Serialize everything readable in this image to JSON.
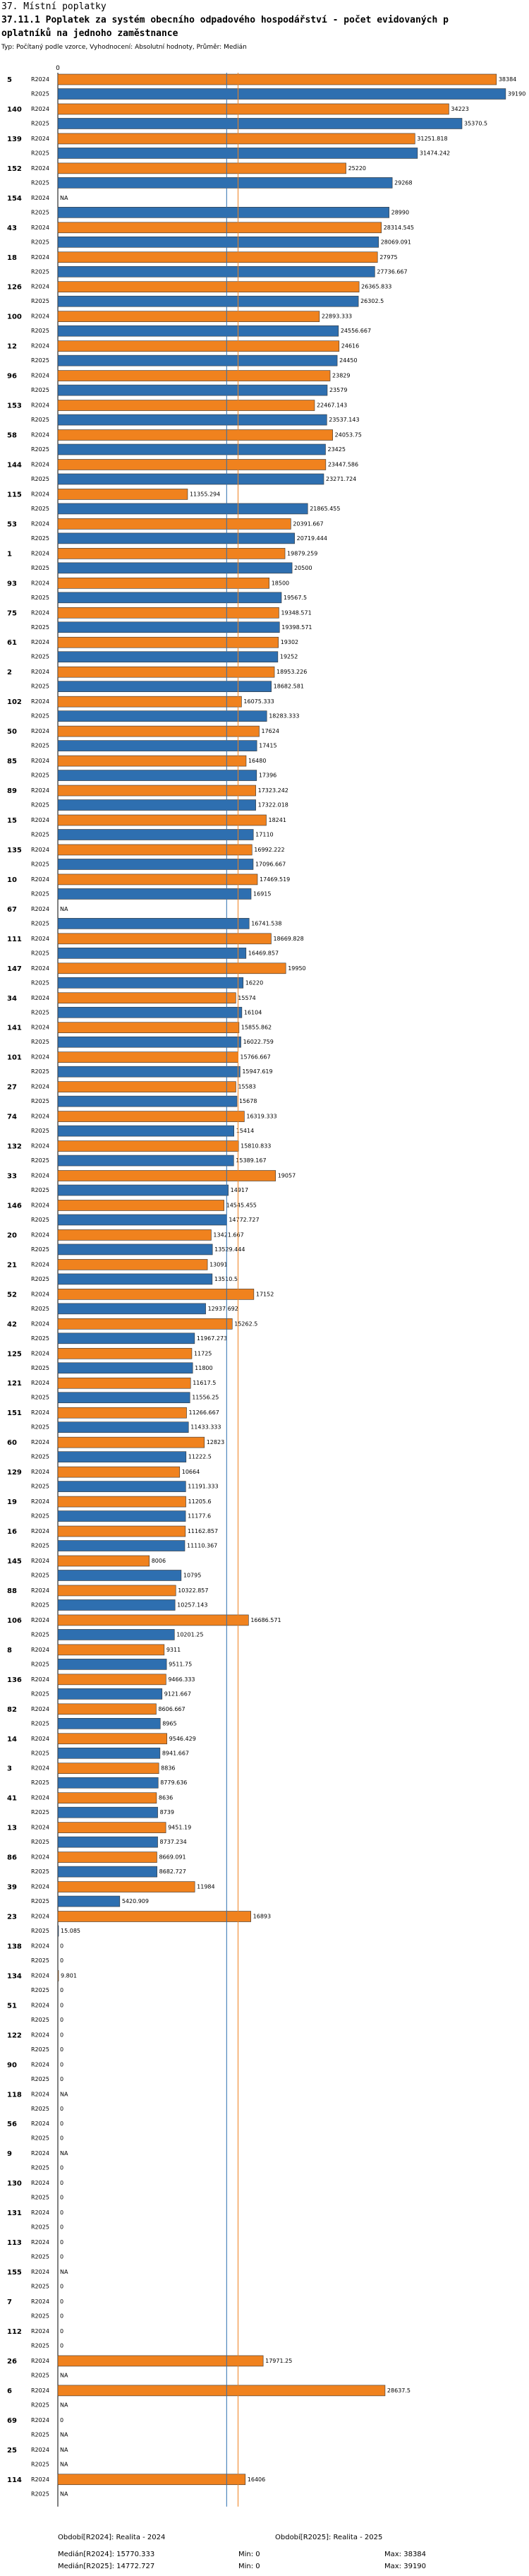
{
  "header": {
    "section": "37. Místní poplatky",
    "title_line1": "37.11.1 Poplatek za systém obecního odpadového hospodářství - počet evidovaných p",
    "title_line2": "oplatníků na jednoho zaměstnance",
    "subtitle": "Typ: Počítaný podle vzorce, Vyhodnocení: Absolutní hodnoty, Průměr: Medián"
  },
  "chart_data": {
    "type": "bar",
    "orientation": "horizontal",
    "xlim": [
      0,
      40000
    ],
    "axis_zero_label": "0",
    "series_names": [
      "R2024",
      "R2025"
    ],
    "series_colors": [
      "#f0821e",
      "#2e6fb0"
    ],
    "median_lines": {
      "R2024": 15770.333,
      "R2025": 14772.727
    },
    "rows": [
      {
        "id": "5",
        "v2024": 38384,
        "l2024": "38384",
        "v2025": 39190,
        "l2025": "39190"
      },
      {
        "id": "140",
        "v2024": 34223,
        "l2024": "34223",
        "v2025": 35370.5,
        "l2025": "35370.5"
      },
      {
        "id": "139",
        "v2024": 31251.818,
        "l2024": "31251.818",
        "v2025": 31474.242,
        "l2025": "31474.242"
      },
      {
        "id": "152",
        "v2024": 25220,
        "l2024": "25220",
        "v2025": 29268,
        "l2025": "29268"
      },
      {
        "id": "154",
        "v2024": null,
        "l2024": "NA",
        "v2025": 28990,
        "l2025": "28990"
      },
      {
        "id": "43",
        "v2024": 28314.545,
        "l2024": "28314.545",
        "v2025": 28069.091,
        "l2025": "28069.091"
      },
      {
        "id": "18",
        "v2024": 27975,
        "l2024": "27975",
        "v2025": 27736.667,
        "l2025": "27736.667"
      },
      {
        "id": "126",
        "v2024": 26365.833,
        "l2024": "26365.833",
        "v2025": 26302.5,
        "l2025": "26302.5"
      },
      {
        "id": "100",
        "v2024": 22893.333,
        "l2024": "22893.333",
        "v2025": 24556.667,
        "l2025": "24556.667"
      },
      {
        "id": "12",
        "v2024": 24616,
        "l2024": "24616",
        "v2025": 24450,
        "l2025": "24450"
      },
      {
        "id": "96",
        "v2024": 23829,
        "l2024": "23829",
        "v2025": 23579,
        "l2025": "23579"
      },
      {
        "id": "153",
        "v2024": 22467.143,
        "l2024": "22467.143",
        "v2025": 23537.143,
        "l2025": "23537.143"
      },
      {
        "id": "58",
        "v2024": 24053.75,
        "l2024": "24053.75",
        "v2025": 23425,
        "l2025": "23425"
      },
      {
        "id": "144",
        "v2024": 23447.586,
        "l2024": "23447.586",
        "v2025": 23271.724,
        "l2025": "23271.724"
      },
      {
        "id": "115",
        "v2024": 11355.294,
        "l2024": "11355.294",
        "v2025": 21865.455,
        "l2025": "21865.455"
      },
      {
        "id": "53",
        "v2024": 20391.667,
        "l2024": "20391.667",
        "v2025": 20719.444,
        "l2025": "20719.444"
      },
      {
        "id": "1",
        "v2024": 19879.259,
        "l2024": "19879.259",
        "v2025": 20500,
        "l2025": "20500"
      },
      {
        "id": "93",
        "v2024": 18500,
        "l2024": "18500",
        "v2025": 19567.5,
        "l2025": "19567.5"
      },
      {
        "id": "75",
        "v2024": 19348.571,
        "l2024": "19348.571",
        "v2025": 19398.571,
        "l2025": "19398.571"
      },
      {
        "id": "61",
        "v2024": 19302,
        "l2024": "19302",
        "v2025": 19252,
        "l2025": "19252"
      },
      {
        "id": "2",
        "v2024": 18953.226,
        "l2024": "18953.226",
        "v2025": 18682.581,
        "l2025": "18682.581"
      },
      {
        "id": "102",
        "v2024": 16075.333,
        "l2024": "16075.333",
        "v2025": 18283.333,
        "l2025": "18283.333"
      },
      {
        "id": "50",
        "v2024": 17624,
        "l2024": "17624",
        "v2025": 17415,
        "l2025": "17415"
      },
      {
        "id": "85",
        "v2024": 16480,
        "l2024": "16480",
        "v2025": 17396,
        "l2025": "17396"
      },
      {
        "id": "89",
        "v2024": 17323.242,
        "l2024": "17323.242",
        "v2025": 17322.018,
        "l2025": "17322.018"
      },
      {
        "id": "15",
        "v2024": 18241,
        "l2024": "18241",
        "v2025": 17110,
        "l2025": "17110"
      },
      {
        "id": "135",
        "v2024": 16992.222,
        "l2024": "16992.222",
        "v2025": 17096.667,
        "l2025": "17096.667"
      },
      {
        "id": "10",
        "v2024": 17469.519,
        "l2024": "17469.519",
        "v2025": 16915,
        "l2025": "16915"
      },
      {
        "id": "67",
        "v2024": null,
        "l2024": "NA",
        "v2025": 16741.538,
        "l2025": "16741.538"
      },
      {
        "id": "111",
        "v2024": 18669.828,
        "l2024": "18669.828",
        "v2025": 16469.857,
        "l2025": "16469.857"
      },
      {
        "id": "147",
        "v2024": 19950,
        "l2024": "19950",
        "v2025": 16220,
        "l2025": "16220"
      },
      {
        "id": "34",
        "v2024": 15574,
        "l2024": "15574",
        "v2025": 16104,
        "l2025": "16104"
      },
      {
        "id": "141",
        "v2024": 15855.862,
        "l2024": "15855.862",
        "v2025": 16022.759,
        "l2025": "16022.759"
      },
      {
        "id": "101",
        "v2024": 15766.667,
        "l2024": "15766.667",
        "v2025": 15947.619,
        "l2025": "15947.619"
      },
      {
        "id": "27",
        "v2024": 15583,
        "l2024": "15583",
        "v2025": 15678,
        "l2025": "15678"
      },
      {
        "id": "74",
        "v2024": 16319.333,
        "l2024": "16319.333",
        "v2025": 15414,
        "l2025": "15414"
      },
      {
        "id": "132",
        "v2024": 15810.833,
        "l2024": "15810.833",
        "v2025": 15389.167,
        "l2025": "15389.167"
      },
      {
        "id": "33",
        "v2024": 19057,
        "l2024": "19057",
        "v2025": 14917,
        "l2025": "14917"
      },
      {
        "id": "146",
        "v2024": 14545.455,
        "l2024": "14545.455",
        "v2025": 14772.727,
        "l2025": "14772.727"
      },
      {
        "id": "20",
        "v2024": 13421.667,
        "l2024": "13421.667",
        "v2025": 13529.444,
        "l2025": "13529.444"
      },
      {
        "id": "21",
        "v2024": 13091,
        "l2024": "13091",
        "v2025": 13510.5,
        "l2025": "13510.5"
      },
      {
        "id": "52",
        "v2024": 17152,
        "l2024": "17152",
        "v2025": 12937.692,
        "l2025": "12937.692"
      },
      {
        "id": "42",
        "v2024": 15262.5,
        "l2024": "15262.5",
        "v2025": 11967.273,
        "l2025": "11967.273"
      },
      {
        "id": "125",
        "v2024": 11725,
        "l2024": "11725",
        "v2025": 11800,
        "l2025": "11800"
      },
      {
        "id": "121",
        "v2024": 11617.5,
        "l2024": "11617.5",
        "v2025": 11556.25,
        "l2025": "11556.25"
      },
      {
        "id": "151",
        "v2024": 11266.667,
        "l2024": "11266.667",
        "v2025": 11433.333,
        "l2025": "11433.333"
      },
      {
        "id": "60",
        "v2024": 12823,
        "l2024": "12823",
        "v2025": 11222.5,
        "l2025": "11222.5"
      },
      {
        "id": "129",
        "v2024": 10664,
        "l2024": "10664",
        "v2025": 11191.333,
        "l2025": "11191.333"
      },
      {
        "id": "19",
        "v2024": 11205.6,
        "l2024": "11205.6",
        "v2025": 11177.6,
        "l2025": "11177.6"
      },
      {
        "id": "16",
        "v2024": 11162.857,
        "l2024": "11162.857",
        "v2025": 11110.367,
        "l2025": "11110.367"
      },
      {
        "id": "145",
        "v2024": 8006,
        "l2024": "8006",
        "v2025": 10795,
        "l2025": "10795"
      },
      {
        "id": "88",
        "v2024": 10322.857,
        "l2024": "10322.857",
        "v2025": 10257.143,
        "l2025": "10257.143"
      },
      {
        "id": "106",
        "v2024": 16686.571,
        "l2024": "16686.571",
        "v2025": 10201.25,
        "l2025": "10201.25"
      },
      {
        "id": "8",
        "v2024": 9311,
        "l2024": "9311",
        "v2025": 9511.75,
        "l2025": "9511.75"
      },
      {
        "id": "136",
        "v2024": 9466.333,
        "l2024": "9466.333",
        "v2025": 9121.667,
        "l2025": "9121.667"
      },
      {
        "id": "82",
        "v2024": 8606.667,
        "l2024": "8606.667",
        "v2025": 8965,
        "l2025": "8965"
      },
      {
        "id": "14",
        "v2024": 9546.429,
        "l2024": "9546.429",
        "v2025": 8941.667,
        "l2025": "8941.667"
      },
      {
        "id": "3",
        "v2024": 8836,
        "l2024": "8836",
        "v2025": 8779.636,
        "l2025": "8779.636"
      },
      {
        "id": "41",
        "v2024": 8636,
        "l2024": "8636",
        "v2025": 8739,
        "l2025": "8739"
      },
      {
        "id": "13",
        "v2024": 9451.19,
        "l2024": "9451.19",
        "v2025": 8737.234,
        "l2025": "8737.234"
      },
      {
        "id": "86",
        "v2024": 8669.091,
        "l2024": "8669.091",
        "v2025": 8682.727,
        "l2025": "8682.727"
      },
      {
        "id": "39",
        "v2024": 11984,
        "l2024": "11984",
        "v2025": 5420.909,
        "l2025": "5420.909"
      },
      {
        "id": "23",
        "v2024": 16893,
        "l2024": "16893",
        "v2025": 15.085,
        "l2025": "15.085"
      },
      {
        "id": "138",
        "v2024": 0,
        "l2024": "0",
        "v2025": 0,
        "l2025": "0"
      },
      {
        "id": "134",
        "v2024": 9.801,
        "l2024": "9.801",
        "v2025": 0,
        "l2025": "0"
      },
      {
        "id": "51",
        "v2024": 0,
        "l2024": "0",
        "v2025": 0,
        "l2025": "0"
      },
      {
        "id": "122",
        "v2024": 0,
        "l2024": "0",
        "v2025": 0,
        "l2025": "0"
      },
      {
        "id": "90",
        "v2024": 0,
        "l2024": "0",
        "v2025": 0,
        "l2025": "0"
      },
      {
        "id": "118",
        "v2024": null,
        "l2024": "NA",
        "v2025": 0,
        "l2025": "0"
      },
      {
        "id": "56",
        "v2024": 0,
        "l2024": "0",
        "v2025": 0,
        "l2025": "0"
      },
      {
        "id": "9",
        "v2024": null,
        "l2024": "NA",
        "v2025": 0,
        "l2025": "0"
      },
      {
        "id": "130",
        "v2024": 0,
        "l2024": "0",
        "v2025": 0,
        "l2025": "0"
      },
      {
        "id": "131",
        "v2024": 0,
        "l2024": "0",
        "v2025": 0,
        "l2025": "0"
      },
      {
        "id": "113",
        "v2024": 0,
        "l2024": "0",
        "v2025": 0,
        "l2025": "0"
      },
      {
        "id": "155",
        "v2024": null,
        "l2024": "NA",
        "v2025": 0,
        "l2025": "0"
      },
      {
        "id": "7",
        "v2024": 0,
        "l2024": "0",
        "v2025": 0,
        "l2025": "0"
      },
      {
        "id": "112",
        "v2024": 0,
        "l2024": "0",
        "v2025": 0,
        "l2025": "0"
      },
      {
        "id": "26",
        "v2024": 17971.25,
        "l2024": "17971.25",
        "v2025": null,
        "l2025": "NA"
      },
      {
        "id": "6",
        "v2024": 28637.5,
        "l2024": "28637.5",
        "v2025": null,
        "l2025": "NA"
      },
      {
        "id": "69",
        "v2024": 0,
        "l2024": "0",
        "v2025": null,
        "l2025": "NA"
      },
      {
        "id": "25",
        "v2024": null,
        "l2024": "NA",
        "v2025": null,
        "l2025": "NA"
      },
      {
        "id": "114",
        "v2024": 16406,
        "l2024": "16406",
        "v2025": null,
        "l2025": "NA"
      }
    ]
  },
  "footer": {
    "period1_label": "Období[R2024]: Realita - 2024",
    "period2_label": "Období[R2025]: Realita - 2025",
    "median1": "Medián[R2024]: 15770.333",
    "median2": "Medián[R2025]: 14772.727",
    "min1": "Min: 0",
    "min2": "Min: 0",
    "max1": "Max: 38384",
    "max2": "Max: 39190"
  }
}
